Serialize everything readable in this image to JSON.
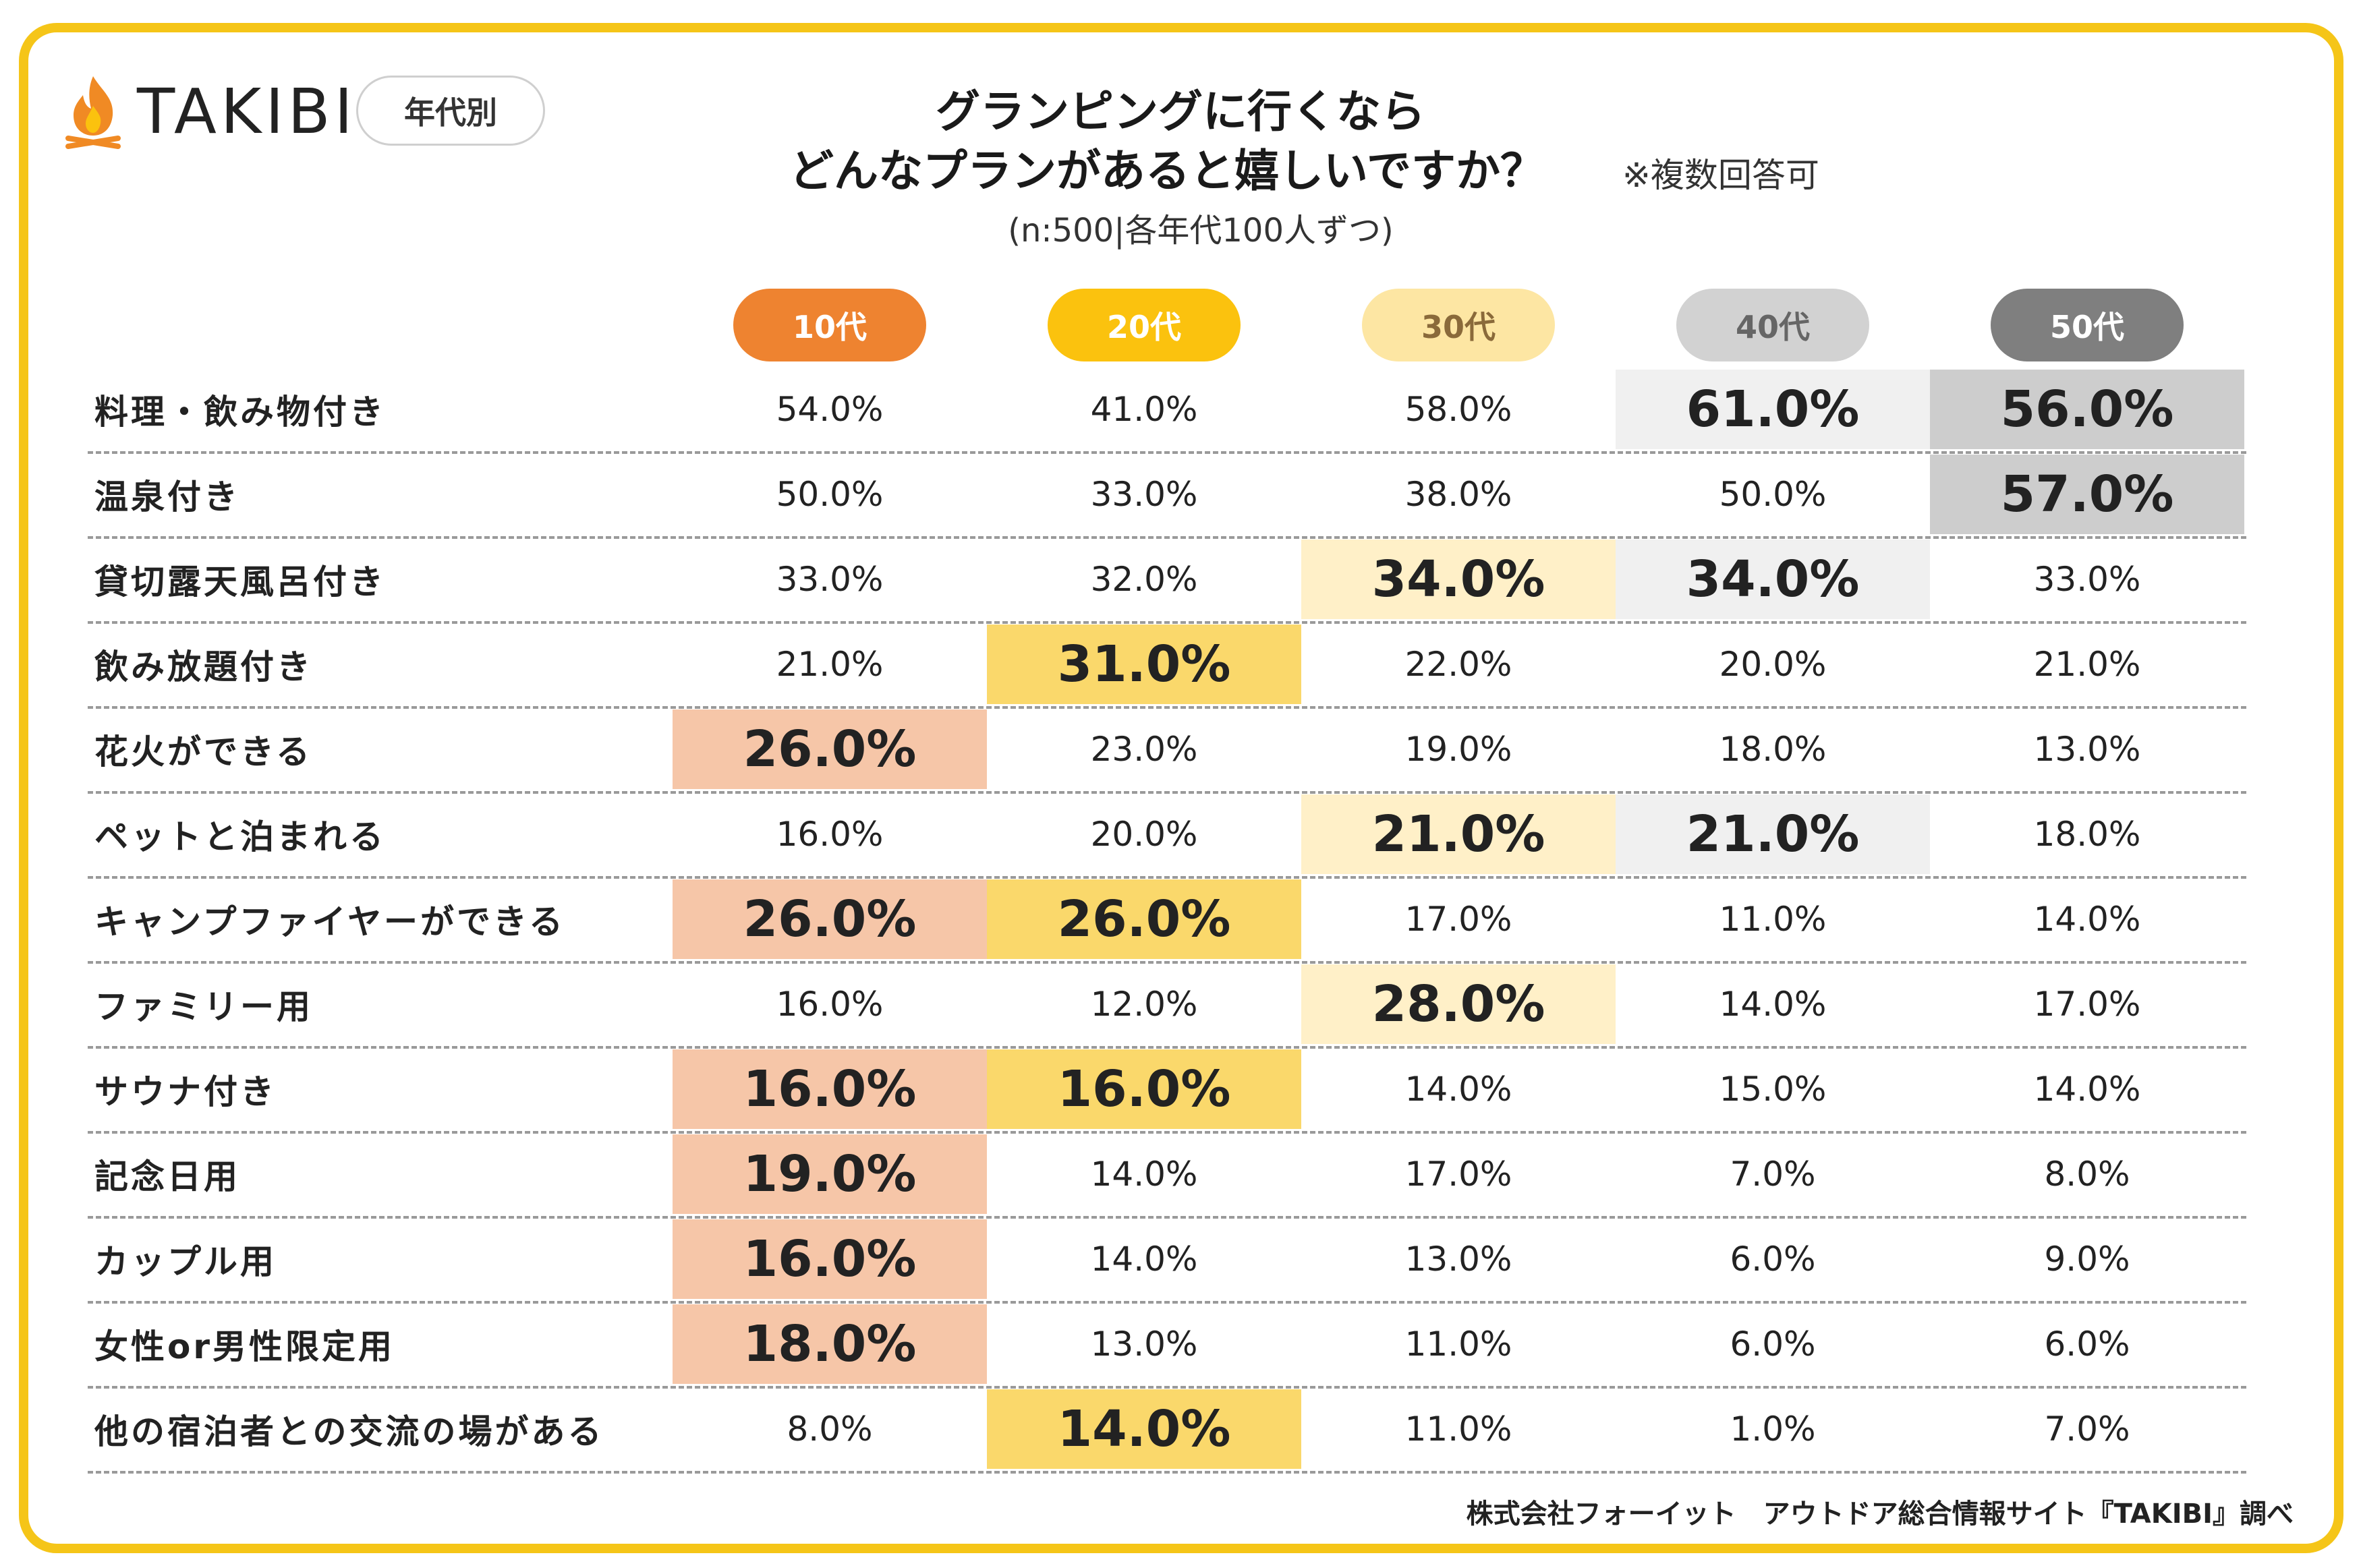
{
  "brand": {
    "name": "TAKIBI",
    "tag": "年代別",
    "flame_color": "#f08a24"
  },
  "title": {
    "line1": "グランピングに行くなら",
    "line2": "どんなプランがあると嬉しいですか？",
    "note": "※複数回答可",
    "subtitle": "(n:500|各年代100人ずつ)"
  },
  "footer": "株式会社フォーイット　アウトドア総合情報サイト『TAKIBI』調べ",
  "chart_data": {
    "type": "table",
    "title": "グランピングに行くならどんなプランがあると嬉しいですか？",
    "columns": [
      {
        "label": "10代",
        "bg": "#ee8330",
        "fg": "#ffffff",
        "hl": "#f6c6a8"
      },
      {
        "label": "20代",
        "bg": "#fbc20e",
        "fg": "#ffffff",
        "hl": "#fad86b"
      },
      {
        "label": "30代",
        "bg": "#fde6a3",
        "fg": "#8a6a3a",
        "hl": "#fff0c8"
      },
      {
        "label": "40代",
        "bg": "#d2d2d2",
        "fg": "#666666",
        "hl": "#f0f0f0"
      },
      {
        "label": "50代",
        "bg": "#7f7f7f",
        "fg": "#ffffff",
        "hl": "#cdcdcd"
      }
    ],
    "rows": [
      {
        "label": "料理・飲み物付き",
        "values": [
          "54.0%",
          "41.0%",
          "58.0%",
          "61.0%",
          "56.0%"
        ],
        "highlight": [
          3,
          4
        ]
      },
      {
        "label": "温泉付き",
        "values": [
          "50.0%",
          "33.0%",
          "38.0%",
          "50.0%",
          "57.0%"
        ],
        "highlight": [
          4
        ]
      },
      {
        "label": "貸切露天風呂付き",
        "values": [
          "33.0%",
          "32.0%",
          "34.0%",
          "34.0%",
          "33.0%"
        ],
        "highlight": [
          2,
          3
        ]
      },
      {
        "label": "飲み放題付き",
        "values": [
          "21.0%",
          "31.0%",
          "22.0%",
          "20.0%",
          "21.0%"
        ],
        "highlight": [
          1
        ]
      },
      {
        "label": "花火ができる",
        "values": [
          "26.0%",
          "23.0%",
          "19.0%",
          "18.0%",
          "13.0%"
        ],
        "highlight": [
          0
        ]
      },
      {
        "label": "ペットと泊まれる",
        "values": [
          "16.0%",
          "20.0%",
          "21.0%",
          "21.0%",
          "18.0%"
        ],
        "highlight": [
          2,
          3
        ]
      },
      {
        "label": "キャンプファイヤーができる",
        "values": [
          "26.0%",
          "26.0%",
          "17.0%",
          "11.0%",
          "14.0%"
        ],
        "highlight": [
          0,
          1
        ]
      },
      {
        "label": "ファミリー用",
        "values": [
          "16.0%",
          "12.0%",
          "28.0%",
          "14.0%",
          "17.0%"
        ],
        "highlight": [
          2
        ]
      },
      {
        "label": "サウナ付き",
        "values": [
          "16.0%",
          "16.0%",
          "14.0%",
          "15.0%",
          "14.0%"
        ],
        "highlight": [
          0,
          1
        ]
      },
      {
        "label": "記念日用",
        "values": [
          "19.0%",
          "14.0%",
          "17.0%",
          "7.0%",
          "8.0%"
        ],
        "highlight": [
          0
        ]
      },
      {
        "label": "カップル用",
        "values": [
          "16.0%",
          "14.0%",
          "13.0%",
          "6.0%",
          "9.0%"
        ],
        "highlight": [
          0
        ]
      },
      {
        "label": "女性or男性限定用",
        "values": [
          "18.0%",
          "13.0%",
          "11.0%",
          "6.0%",
          "6.0%"
        ],
        "highlight": [
          0
        ]
      },
      {
        "label": "他の宿泊者との交流の場がある",
        "values": [
          "8.0%",
          "14.0%",
          "11.0%",
          "1.0%",
          "7.0%"
        ],
        "highlight": [
          1
        ]
      }
    ]
  }
}
